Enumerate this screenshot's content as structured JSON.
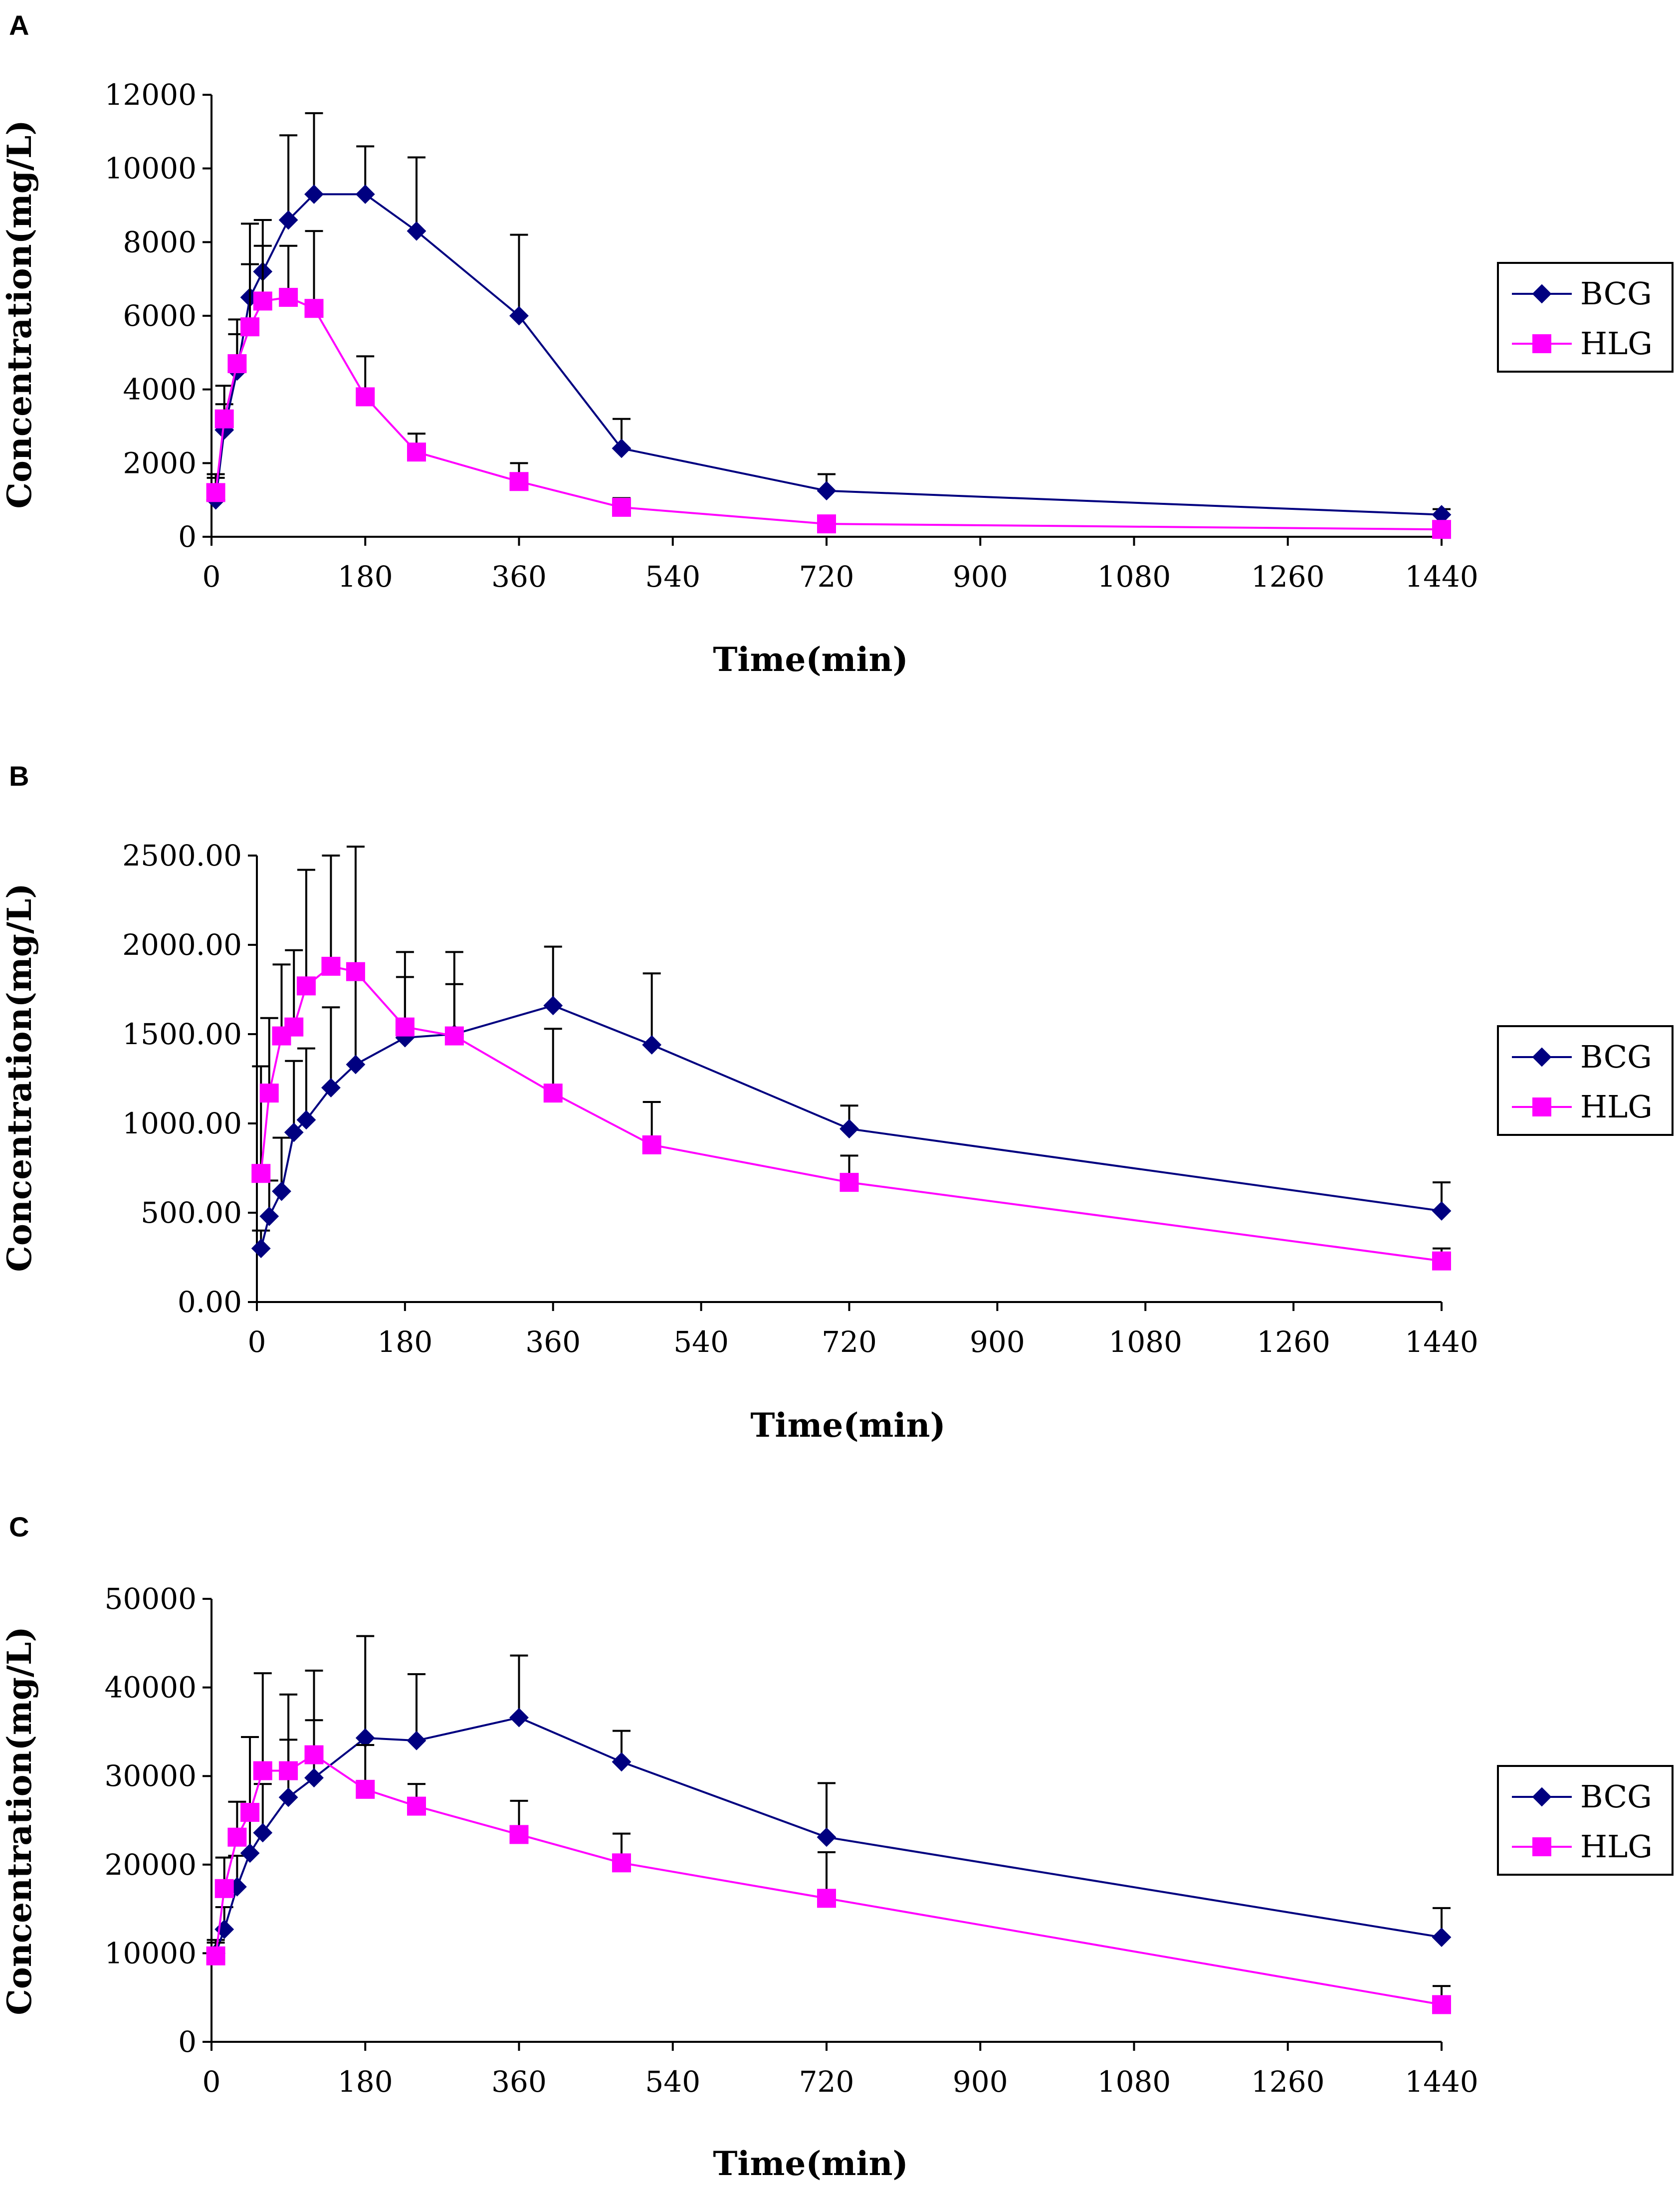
{
  "colors": {
    "BCG": "#000080",
    "HLG": "#ff00ff"
  },
  "chart_data": [
    {
      "panel": "A",
      "type": "line",
      "xlabel": "Time(min)",
      "ylabel": "Concentration(mg/L)",
      "xlim": [
        0,
        1440
      ],
      "ylim": [
        0,
        12000
      ],
      "xticks": [
        0,
        180,
        360,
        540,
        720,
        900,
        1080,
        1260,
        1440
      ],
      "xtick_labels": [
        "0",
        "180",
        "360",
        "540",
        "720",
        "900",
        "1080",
        "1260",
        "1440"
      ],
      "yticks": [
        0,
        2000,
        4000,
        6000,
        8000,
        10000,
        12000
      ],
      "ytick_labels": [
        "0",
        "2000",
        "4000",
        "6000",
        "8000",
        "10000",
        "12000"
      ],
      "legend": [
        "BCG",
        "HLG"
      ],
      "series": [
        {
          "name": "BCG",
          "marker": "diamond",
          "x": [
            5,
            15,
            30,
            45,
            60,
            90,
            120,
            180,
            240,
            360,
            480,
            720,
            1440
          ],
          "y": [
            1000,
            2900,
            4500,
            6500,
            7200,
            8600,
            9300,
            9300,
            8300,
            6000,
            2400,
            1250,
            600
          ],
          "err": [
            600,
            700,
            1000,
            2000,
            1400,
            2300,
            2200,
            1300,
            2000,
            2200,
            800,
            450,
            150
          ]
        },
        {
          "name": "HLG",
          "marker": "square",
          "x": [
            5,
            15,
            30,
            45,
            60,
            90,
            120,
            180,
            240,
            360,
            480,
            720,
            1440
          ],
          "y": [
            1200,
            3200,
            4700,
            5700,
            6400,
            6500,
            6200,
            3800,
            2300,
            1500,
            800,
            350,
            200
          ],
          "err": [
            500,
            900,
            1200,
            1700,
            1500,
            1400,
            2100,
            1100,
            500,
            500,
            250,
            120,
            80
          ]
        }
      ]
    },
    {
      "panel": "B",
      "type": "line",
      "xlabel": "Time(min)",
      "ylabel": "Concentration(mg/L)",
      "xlim": [
        0,
        1440
      ],
      "ylim": [
        0,
        2500
      ],
      "xticks": [
        0,
        180,
        360,
        540,
        720,
        900,
        1080,
        1260,
        1440
      ],
      "xtick_labels": [
        "0",
        "180",
        "360",
        "540",
        "720",
        "900",
        "1080",
        "1260",
        "1440"
      ],
      "yticks": [
        0,
        500,
        1000,
        1500,
        2000,
        2500
      ],
      "ytick_labels": [
        "0.00",
        "500.00",
        "1000.00",
        "1500.00",
        "2000.00",
        "2500.00"
      ],
      "legend": [
        "BCG",
        "HLG"
      ],
      "series": [
        {
          "name": "BCG",
          "marker": "diamond",
          "x": [
            5,
            15,
            30,
            45,
            60,
            90,
            120,
            180,
            240,
            360,
            480,
            720,
            1440
          ],
          "y": [
            300,
            480,
            620,
            950,
            1020,
            1200,
            1330,
            1480,
            1500,
            1660,
            1440,
            970,
            510
          ],
          "err": [
            100,
            200,
            300,
            400,
            400,
            450,
            560,
            480,
            460,
            330,
            400,
            130,
            160
          ]
        },
        {
          "name": "HLG",
          "marker": "square",
          "x": [
            5,
            15,
            30,
            45,
            60,
            90,
            120,
            180,
            240,
            360,
            480,
            720,
            1440
          ],
          "y": [
            720,
            1170,
            1490,
            1540,
            1770,
            1880,
            1850,
            1540,
            1490,
            1170,
            880,
            670,
            230
          ],
          "err": [
            600,
            420,
            400,
            430,
            650,
            620,
            700,
            280,
            290,
            360,
            240,
            150,
            70
          ]
        }
      ]
    },
    {
      "panel": "C",
      "type": "line",
      "xlabel": "Time(min)",
      "ylabel": "Concentration(mg/L)",
      "xlim": [
        0,
        1440
      ],
      "ylim": [
        0,
        50000
      ],
      "xticks": [
        0,
        180,
        360,
        540,
        720,
        900,
        1080,
        1260,
        1440
      ],
      "xtick_labels": [
        "0",
        "180",
        "360",
        "540",
        "720",
        "900",
        "1080",
        "1260",
        "1440"
      ],
      "yticks": [
        0,
        10000,
        20000,
        30000,
        40000,
        50000
      ],
      "ytick_labels": [
        "0",
        "10000",
        "20000",
        "30000",
        "40000",
        "50000"
      ],
      "legend": [
        "BCG",
        "HLG"
      ],
      "series": [
        {
          "name": "BCG",
          "marker": "diamond",
          "x": [
            5,
            15,
            30,
            45,
            60,
            90,
            120,
            180,
            240,
            360,
            480,
            720,
            1440
          ],
          "y": [
            10000,
            12700,
            17500,
            21300,
            23600,
            27600,
            29800,
            34300,
            34000,
            36600,
            31600,
            23100,
            11800
          ],
          "err": [
            1500,
            2500,
            3500,
            4500,
            5500,
            6500,
            6500,
            11500,
            7500,
            7000,
            3500,
            6100,
            3300
          ]
        },
        {
          "name": "HLG",
          "marker": "square",
          "x": [
            5,
            15,
            30,
            45,
            60,
            90,
            120,
            180,
            240,
            360,
            480,
            720,
            1440
          ],
          "y": [
            9700,
            17300,
            23100,
            25900,
            30600,
            30600,
            32400,
            28500,
            26600,
            23400,
            20200,
            16200,
            4200
          ],
          "err": [
            1500,
            3500,
            4000,
            8500,
            11000,
            8600,
            9500,
            5000,
            2500,
            3800,
            3300,
            5200,
            2100
          ]
        }
      ]
    }
  ]
}
